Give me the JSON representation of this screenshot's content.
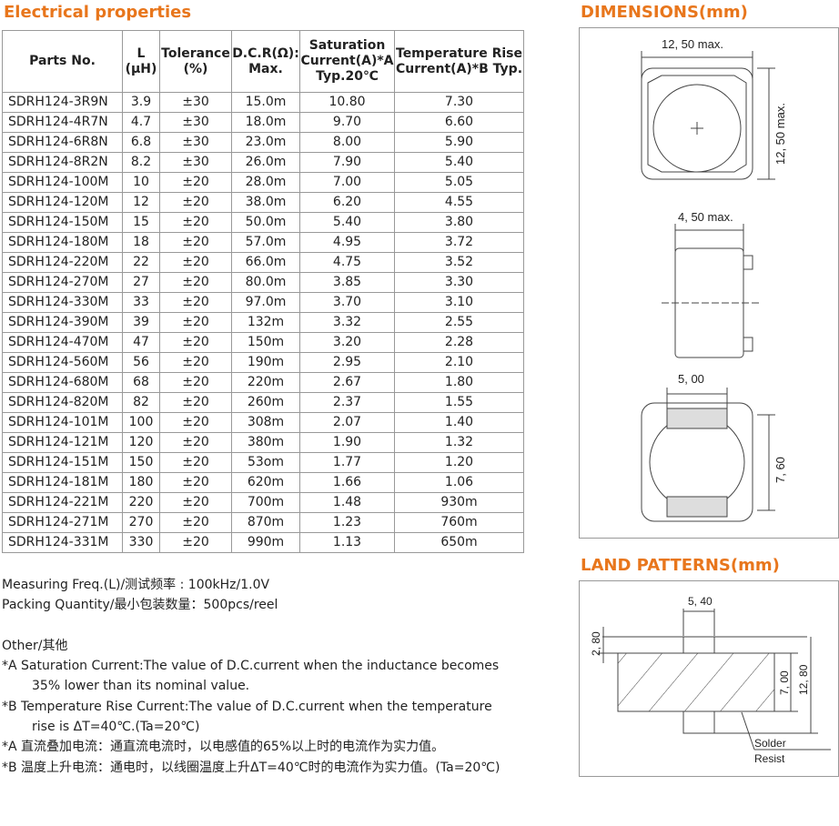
{
  "elec": {
    "title": "Electrical properties",
    "headers": [
      "Parts  No.",
      "L\n(μH)",
      "Tolerance\n(%)",
      "D.C.R(Ω):\nMax.",
      "Saturation\nCurrent(A)*A\nTyp.20℃",
      "Temperature Rise\nCurrent(A)*B  Typ."
    ],
    "rows": [
      [
        "SDRH124-3R9N",
        "3.9",
        "±30",
        "15.0m",
        "10.80",
        "7.30"
      ],
      [
        "SDRH124-4R7N",
        "4.7",
        "±30",
        "18.0m",
        "9.70",
        "6.60"
      ],
      [
        "SDRH124-6R8N",
        "6.8",
        "±30",
        "23.0m",
        "8.00",
        "5.90"
      ],
      [
        "SDRH124-8R2N",
        "8.2",
        "±30",
        "26.0m",
        "7.90",
        "5.40"
      ],
      [
        "SDRH124-100M",
        "10",
        "±20",
        "28.0m",
        "7.00",
        "5.05"
      ],
      [
        "SDRH124-120M",
        "12",
        "±20",
        "38.0m",
        "6.20",
        "4.55"
      ],
      [
        "SDRH124-150M",
        "15",
        "±20",
        "50.0m",
        "5.40",
        "3.80"
      ],
      [
        "SDRH124-180M",
        "18",
        "±20",
        "57.0m",
        "4.95",
        "3.72"
      ],
      [
        "SDRH124-220M",
        "22",
        "±20",
        "66.0m",
        "4.75",
        "3.52"
      ],
      [
        "SDRH124-270M",
        "27",
        "±20",
        "80.0m",
        "3.85",
        "3.30"
      ],
      [
        "SDRH124-330M",
        "33",
        "±20",
        "97.0m",
        "3.70",
        "3.10"
      ],
      [
        "SDRH124-390M",
        "39",
        "±20",
        "132m",
        "3.32",
        "2.55"
      ],
      [
        "SDRH124-470M",
        "47",
        "±20",
        "150m",
        "3.20",
        "2.28"
      ],
      [
        "SDRH124-560M",
        "56",
        "±20",
        "190m",
        "2.95",
        "2.10"
      ],
      [
        "SDRH124-680M",
        "68",
        "±20",
        "220m",
        "2.67",
        "1.80"
      ],
      [
        "SDRH124-820M",
        "82",
        "±20",
        "260m",
        "2.37",
        "1.55"
      ],
      [
        "SDRH124-101M",
        "100",
        "±20",
        "308m",
        "2.07",
        "1.40"
      ],
      [
        "SDRH124-121M",
        "120",
        "±20",
        "380m",
        "1.90",
        "1.32"
      ],
      [
        "SDRH124-151M",
        "150",
        "±20",
        "53om",
        "1.77",
        "1.20"
      ],
      [
        "SDRH124-181M",
        "180",
        "±20",
        "620m",
        "1.66",
        "1.06"
      ],
      [
        "SDRH124-221M",
        "220",
        "±20",
        "700m",
        "1.48",
        "930m"
      ],
      [
        "SDRH124-271M",
        "270",
        "±20",
        "870m",
        "1.23",
        "760m"
      ],
      [
        "SDRH124-331M",
        "330",
        "±20",
        "990m",
        "1.13",
        "650m"
      ]
    ]
  },
  "notes": {
    "freq": "Measuring Freq.(L)/测试频率 : 100kHz/1.0V",
    "packing": "Packing Quantity/最小包装数量：500pcs/reel",
    "other": "Other/其他",
    "a1": "*A  Saturation Current:The value of D.C.current when the inductance becomes",
    "a2": "35% lower than its nominal value.",
    "b1": "*B  Temperature Rise Current:The value of D.C.current when the temperature",
    "b2": "rise is ΔT=40℃.(Ta=20℃)",
    "a_cn": "*A  直流叠加电流：通直流电流时，以电感值的65%以上时的电流作为实力值。",
    "b_cn": "*B  温度上升电流：通电时，以线圈温度上升ΔT=40℃时的电流作为实力值。(Ta=20℃)"
  },
  "dims": {
    "title": "DIMENSIONS(mm)",
    "w": "12, 50 max.",
    "h": "12, 50  max.",
    "t": "4, 50 max.",
    "pad_w": "5, 00",
    "pad_h": "7, 60"
  },
  "land": {
    "title": "LAND PATTERNS(mm)",
    "w": "5, 40",
    "a": "2, 80",
    "b": "7, 00",
    "c": "12, 80",
    "solder": "Solder",
    "resist": "Resist"
  }
}
